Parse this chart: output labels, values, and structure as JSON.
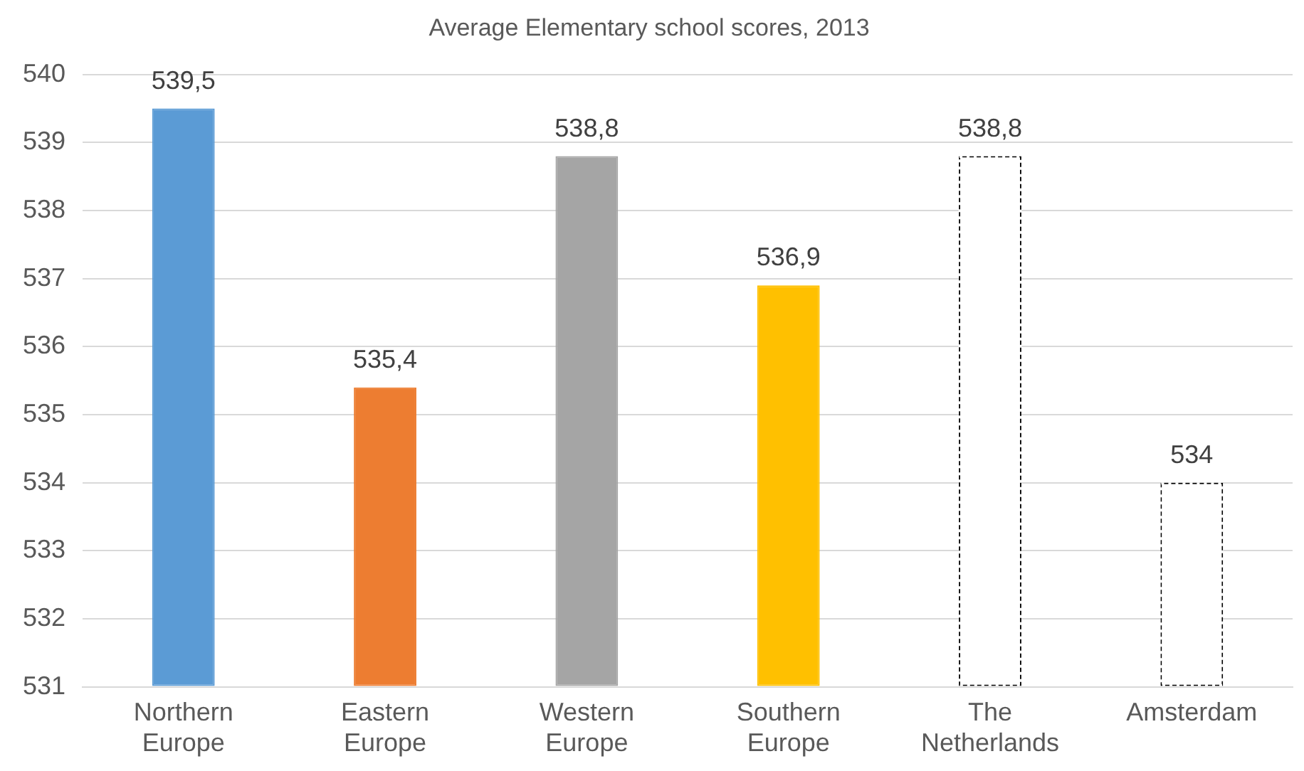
{
  "chart_data": {
    "type": "bar",
    "title": "Average Elementary school scores, 2013",
    "categories": [
      "Northern Europe",
      "Eastern Europe",
      "Western Europe",
      "Southern Europe",
      "The Netherlands",
      "Amsterdam"
    ],
    "values": [
      539.5,
      535.4,
      538.8,
      536.9,
      538.8,
      534
    ],
    "colors": [
      "#5b9bd5",
      "#ed7d31",
      "#a5a5a5",
      "#ffc000",
      "#ffffff",
      "#ffffff"
    ],
    "value_labels": [
      "539,5",
      "535,4",
      "538,8",
      "536,9",
      "538,8",
      "534"
    ],
    "ylim": [
      531,
      540
    ],
    "yticks": [
      531,
      532,
      533,
      534,
      535,
      536,
      537,
      538,
      539,
      540
    ],
    "grid": "y",
    "legend": false
  }
}
